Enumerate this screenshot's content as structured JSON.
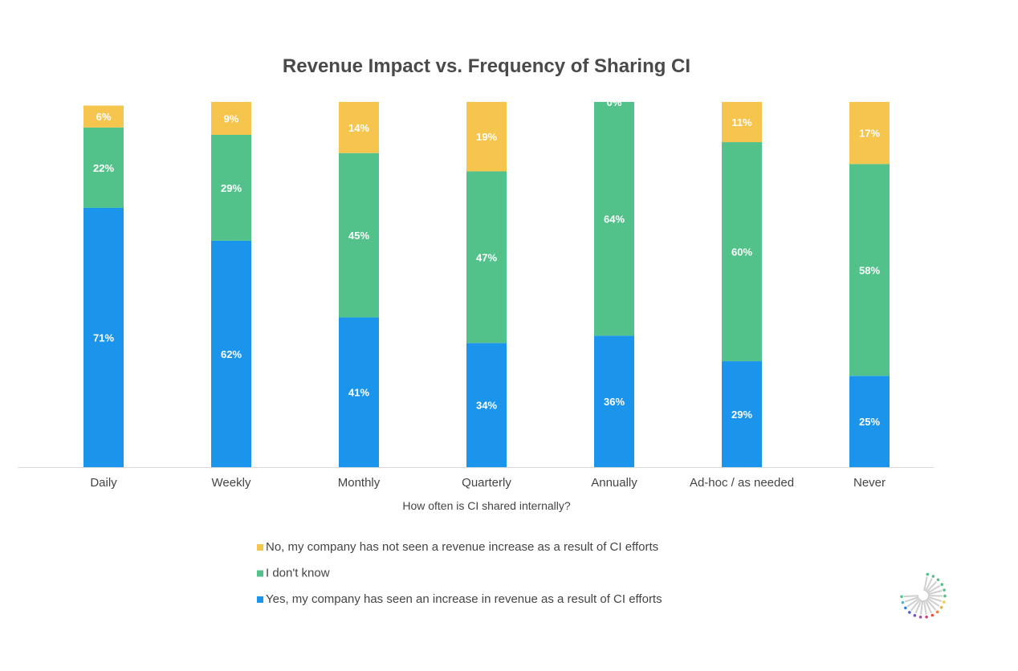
{
  "chart_data": {
    "type": "bar",
    "stacked": true,
    "title": "Revenue Impact vs. Frequency of Sharing CI",
    "xlabel": "How often is CI shared internally?",
    "ylabel": "",
    "ylim": [
      0,
      100
    ],
    "grid": false,
    "legend_position": "bottom",
    "categories": [
      "Daily",
      "Weekly",
      "Monthly",
      "Quarterly",
      "Annually",
      "Ad-hoc / as needed",
      "Never"
    ],
    "series": [
      {
        "name": "Yes, my company has seen an increase in revenue as a result of CI efforts",
        "color": "#1B95EC",
        "values": [
          71,
          62,
          41,
          34,
          36,
          29,
          25
        ]
      },
      {
        "name": "I don't know",
        "color": "#52C28A",
        "values": [
          22,
          29,
          45,
          47,
          64,
          60,
          58
        ]
      },
      {
        "name": "No, my company has not seen a revenue increase as a result of CI efforts",
        "color": "#F5C54E",
        "values": [
          6,
          9,
          14,
          19,
          0,
          11,
          17
        ]
      }
    ],
    "legend_order": [
      2,
      1,
      0
    ],
    "value_suffix": "%"
  },
  "logo": {
    "icon": "radiating-lines-logo-icon"
  }
}
